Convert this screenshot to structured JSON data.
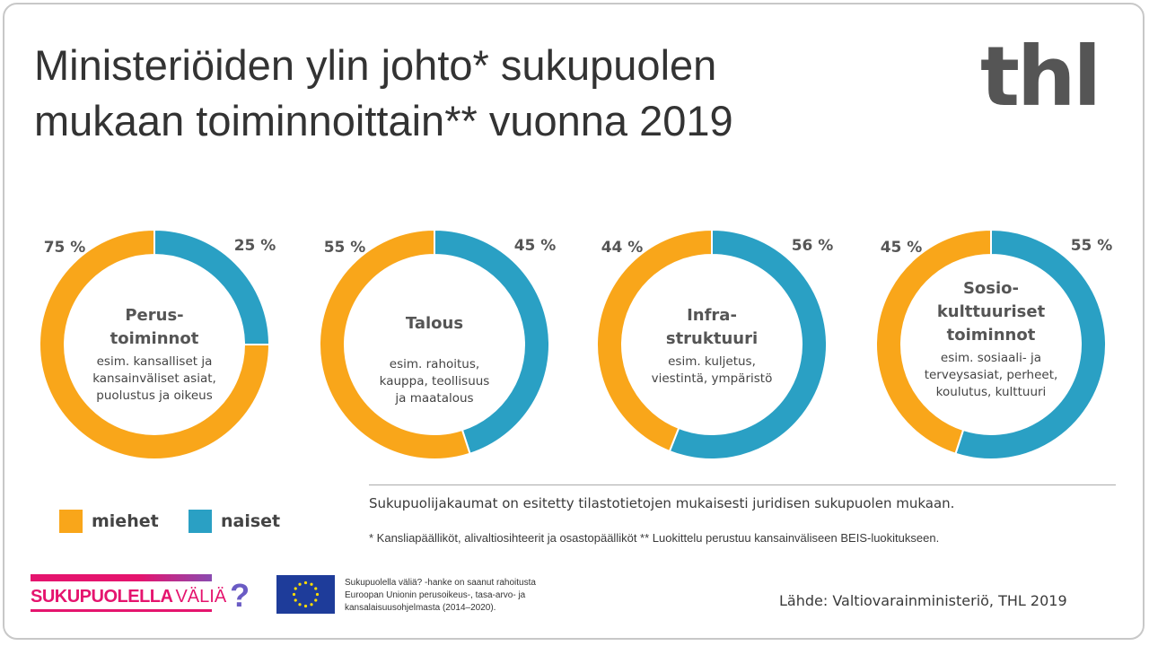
{
  "title_line1": "Ministeriöiden ylin johto* sukupuolen",
  "title_line2": "mukaan toiminnoittain** vuonna 2019",
  "logo": "thl",
  "colors": {
    "miehet": "#f9a61a",
    "naiset": "#2aa0c4"
  },
  "chart_data": [
    {
      "type": "pie",
      "title": "Perus-toiminnot",
      "title_lines": [
        "Perus-",
        "toiminnot"
      ],
      "desc_lines": [
        "esim. kansalliset ja",
        "kansainväliset asiat,",
        "puolustus ja oikeus"
      ],
      "series": [
        {
          "name": "miehet",
          "value": 75,
          "label": "75 %"
        },
        {
          "name": "naiset",
          "value": 25,
          "label": "25 %"
        }
      ]
    },
    {
      "type": "pie",
      "title": "Talous",
      "title_lines": [
        "Talous"
      ],
      "desc_lines": [
        "esim. rahoitus,",
        "kauppa, teollisuus",
        "ja maatalous"
      ],
      "series": [
        {
          "name": "miehet",
          "value": 55,
          "label": "55 %"
        },
        {
          "name": "naiset",
          "value": 45,
          "label": "45 %"
        }
      ]
    },
    {
      "type": "pie",
      "title": "Infra-struktuuri",
      "title_lines": [
        "Infra-",
        "struktuuri"
      ],
      "desc_lines": [
        "esim. kuljetus,",
        "viestintä, ympäristö"
      ],
      "series": [
        {
          "name": "miehet",
          "value": 44,
          "label": "44 %"
        },
        {
          "name": "naiset",
          "value": 56,
          "label": "56 %"
        }
      ]
    },
    {
      "type": "pie",
      "title": "Sosio-kulttuuriset toiminnot",
      "title_lines": [
        "Sosio-",
        "kulttuuriset",
        "toiminnot"
      ],
      "desc_lines": [
        "esim. sosiaali- ja",
        "terveysasiat, perheet,",
        "koulutus, kulttuuri"
      ],
      "series": [
        {
          "name": "miehet",
          "value": 45,
          "label": "45 %"
        },
        {
          "name": "naiset",
          "value": 55,
          "label": "55 %"
        }
      ]
    }
  ],
  "legend": {
    "miehet": "miehet",
    "naiset": "naiset"
  },
  "note1": "Sukupuolijakaumat on esitetty tilastotietojen mukaisesti juridisen sukupuolen mukaan.",
  "note2": "* Kansliapäälliköt, alivaltiosihteerit ja osastopäälliköt  ** Luokittelu perustuu kansainväliseen BEIS-luokitukseen.",
  "source": "Lähde: Valtiovarainministeriö, THL 2019",
  "sv_logo": {
    "bold": "SUKUPUOLELLA",
    "light": "VÄLIÄ",
    "mark": "?"
  },
  "eu_text": [
    "Sukupuolella väliä? -hanke on saanut rahoitusta",
    "Euroopan Unionin perusoikeus-, tasa-arvo- ja",
    "kansalaisuusohjelmasta (2014–2020)."
  ]
}
